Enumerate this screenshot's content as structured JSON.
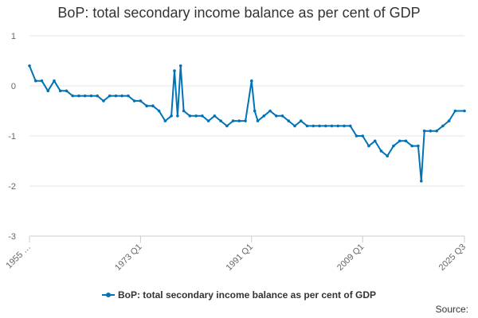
{
  "chart_data": {
    "type": "line",
    "title": "BoP: total secondary income balance as per cent of GDP",
    "xlabel": "",
    "ylabel": "",
    "ylim": [
      -3,
      1
    ],
    "y_ticks": [
      1,
      0,
      -1,
      -2,
      -3
    ],
    "x_ticks": [
      "1955 …",
      "1973 Q1",
      "1991 Q1",
      "2009 Q1",
      "2025 Q3"
    ],
    "grid": true,
    "legend_position": "bottom",
    "color": "#0073b7",
    "series": [
      {
        "name": "BoP: total secondary income balance as per cent of GDP",
        "x": [
          1955,
          1956,
          1957,
          1958,
          1959,
          1960,
          1961,
          1962,
          1963,
          1964,
          1965,
          1966,
          1967,
          1968,
          1969,
          1970,
          1971,
          1972,
          1973,
          1974,
          1975,
          1976,
          1977,
          1978,
          1978.5,
          1979,
          1979.5,
          1980,
          1981,
          1982,
          1983,
          1984,
          1985,
          1986,
          1987,
          1988,
          1989,
          1990,
          1991,
          1991.5,
          1992,
          1993,
          1994,
          1995,
          1996,
          1997,
          1998,
          1999,
          2000,
          2001,
          2002,
          2003,
          2004,
          2005,
          2006,
          2007,
          2008,
          2009,
          2010,
          2011,
          2012,
          2013,
          2014,
          2015,
          2016,
          2017,
          2018,
          2018.5,
          2019,
          2020,
          2021,
          2022,
          2023,
          2024,
          2025.5
        ],
        "values": [
          0.4,
          0.1,
          0.1,
          -0.1,
          0.1,
          -0.1,
          -0.1,
          -0.2,
          -0.2,
          -0.2,
          -0.2,
          -0.2,
          -0.3,
          -0.2,
          -0.2,
          -0.2,
          -0.2,
          -0.3,
          -0.3,
          -0.4,
          -0.4,
          -0.5,
          -0.7,
          -0.6,
          0.3,
          -0.6,
          0.4,
          -0.5,
          -0.6,
          -0.6,
          -0.6,
          -0.7,
          -0.6,
          -0.7,
          -0.8,
          -0.7,
          -0.7,
          -0.7,
          0.1,
          -0.5,
          -0.7,
          -0.6,
          -0.5,
          -0.6,
          -0.6,
          -0.7,
          -0.8,
          -0.7,
          -0.8,
          -0.8,
          -0.8,
          -0.8,
          -0.8,
          -0.8,
          -0.8,
          -0.8,
          -1.0,
          -1.0,
          -1.2,
          -1.1,
          -1.3,
          -1.4,
          -1.2,
          -1.1,
          -1.1,
          -1.2,
          -1.2,
          -1.9,
          -0.9,
          -0.9,
          -0.9,
          -0.8,
          -0.7,
          -0.5,
          -0.5
        ]
      }
    ]
  },
  "legend": {
    "label": "BoP: total secondary income balance as per cent of GDP"
  },
  "source": {
    "label": "Source:"
  }
}
